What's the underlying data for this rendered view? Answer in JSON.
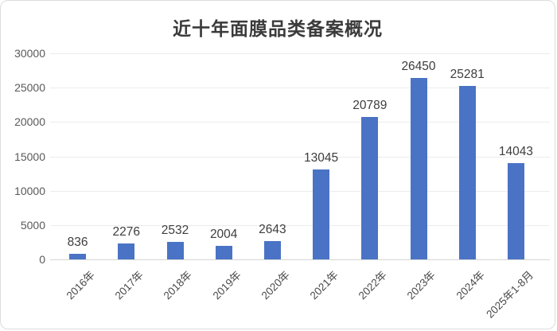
{
  "page": {
    "background": "#ffffff",
    "card_border_color": "#dcdcdc"
  },
  "chart_data": {
    "type": "bar",
    "title": "近十年面膜品类备案概况",
    "categories": [
      "2016年",
      "2017年",
      "2018年",
      "2019年",
      "2020年",
      "2021年",
      "2022年",
      "2023年",
      "2024年",
      "2025年1-8月"
    ],
    "values": [
      836,
      2276,
      2532,
      2004,
      2643,
      13045,
      20789,
      26450,
      25281,
      14043
    ],
    "xlabel": "",
    "ylabel": "",
    "ylim": [
      0,
      30000
    ],
    "yticks": [
      0,
      5000,
      10000,
      15000,
      20000,
      25000,
      30000
    ],
    "grid": "horizontal",
    "legend": "none",
    "data_labels": true,
    "bar_color": "#4a73c5",
    "value_label_color": "#3d3d3d",
    "axis_text_color": "#595959",
    "gridline_color": "#ececec",
    "baseline_color": "#d5d5d5",
    "xlabel_rotation_deg": -45
  }
}
